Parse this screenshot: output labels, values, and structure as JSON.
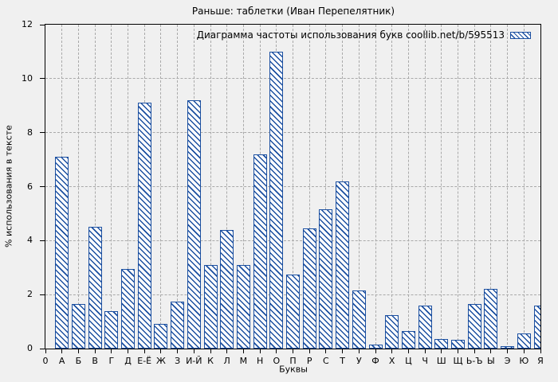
{
  "colors": {
    "bar_stroke": "#1b4fa0",
    "bar_fill": "#ffffff",
    "grid": "#a9a9a9",
    "axis": "#000000",
    "background": "#f0f0f0"
  },
  "chart_data": {
    "type": "bar",
    "title": "Раньше: таблетки (Иван Перепелятник)",
    "legend": "Диаграмма частоты использования букв coollib.net/b/595513",
    "legend_position": "top-right",
    "xlabel": "Буквы",
    "ylabel": "% использования в тексте",
    "ylim": [
      0,
      12
    ],
    "yticks": [
      0,
      2,
      4,
      6,
      8,
      10,
      12
    ],
    "grid": true,
    "bar_style": "blue diagonal hatch on white",
    "categories": [
      "0",
      "А",
      "Б",
      "В",
      "Г",
      "Д",
      "Е-Ё",
      "Ж",
      "З",
      "И-Й",
      "К",
      "Л",
      "М",
      "Н",
      "О",
      "П",
      "Р",
      "С",
      "Т",
      "У",
      "Ф",
      "Х",
      "Ц",
      "Ч",
      "Ш",
      "Щ",
      "Ь-Ъ",
      "Ы",
      "Э",
      "Ю",
      "Я"
    ],
    "values": [
      0,
      7.1,
      1.65,
      4.5,
      1.4,
      2.95,
      9.1,
      0.9,
      1.75,
      9.2,
      3.1,
      4.4,
      3.1,
      7.2,
      11.0,
      2.75,
      4.45,
      5.15,
      6.2,
      2.15,
      0.15,
      1.25,
      0.65,
      1.6,
      0.35,
      0.33,
      1.65,
      2.2,
      0.1,
      0.55,
      1.6
    ]
  }
}
